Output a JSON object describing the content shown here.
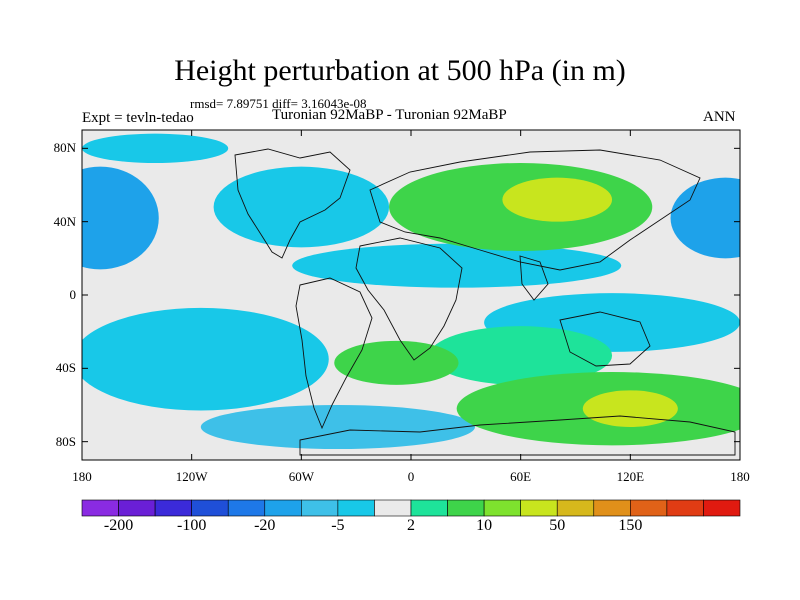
{
  "plot": {
    "title": "Height perturbation at 500 hPa (in m)",
    "stats": "rmsd= 7.89751 diff= 3.16043e-08",
    "expt_label": "Expt = tevln-tedao",
    "experiment": "Turonian  92MaBP - Turonian  92MaBP",
    "season": "ANN"
  },
  "lat_ticks": [
    {
      "label": "80N",
      "value": 80
    },
    {
      "label": "40N",
      "value": 40
    },
    {
      "label": "0",
      "value": 0
    },
    {
      "label": "40S",
      "value": -40
    },
    {
      "label": "80S",
      "value": -80
    }
  ],
  "lon_ticks": [
    {
      "label": "180",
      "value": -180
    },
    {
      "label": "120W",
      "value": -120
    },
    {
      "label": "60W",
      "value": -60
    },
    {
      "label": "0",
      "value": 0
    },
    {
      "label": "60E",
      "value": 60
    },
    {
      "label": "120E",
      "value": 120
    },
    {
      "label": "180",
      "value": 180
    }
  ],
  "colorbar": {
    "colors": [
      "#8a2be2",
      "#6a1fd6",
      "#3b2ad9",
      "#1f4fd8",
      "#1e78e8",
      "#1ea2ea",
      "#3ec0e8",
      "#18c8e8",
      "#eaeaea",
      "#1ee39a",
      "#3ed44a",
      "#7ee22e",
      "#c8e51e",
      "#d6b81c",
      "#e0901a",
      "#e06218",
      "#e03c14",
      "#e01a10"
    ],
    "labels": [
      {
        "label": "-200",
        "boundary": 1
      },
      {
        "label": "-100",
        "boundary": 3
      },
      {
        "label": "-20",
        "boundary": 5
      },
      {
        "label": "-5",
        "boundary": 7
      },
      {
        "label": "2",
        "boundary": 9
      },
      {
        "label": "10",
        "boundary": 11
      },
      {
        "label": "50",
        "boundary": 13
      },
      {
        "label": "150",
        "boundary": 15
      }
    ]
  },
  "fields": [
    {
      "lon": -170,
      "lat": 42,
      "rx": 32,
      "ry": 28,
      "level": 5
    },
    {
      "lon": 172,
      "lat": 42,
      "rx": 30,
      "ry": 22,
      "level": 5
    },
    {
      "lon": -60,
      "lat": 48,
      "rx": 48,
      "ry": 22,
      "level": 7
    },
    {
      "lon": -115,
      "lat": -35,
      "rx": 70,
      "ry": 28,
      "level": 7
    },
    {
      "lon": -40,
      "lat": -72,
      "rx": 75,
      "ry": 12,
      "level": 6
    },
    {
      "lon": 25,
      "lat": 16,
      "rx": 90,
      "ry": 12,
      "level": 7
    },
    {
      "lon": -140,
      "lat": 80,
      "rx": 40,
      "ry": 8,
      "level": 7
    },
    {
      "lon": 110,
      "lat": -15,
      "rx": 70,
      "ry": 16,
      "level": 7
    },
    {
      "lon": 60,
      "lat": 48,
      "rx": 72,
      "ry": 24,
      "level": 10
    },
    {
      "lon": 80,
      "lat": 52,
      "rx": 30,
      "ry": 12,
      "level": 12
    },
    {
      "lon": 60,
      "lat": -33,
      "rx": 50,
      "ry": 16,
      "level": 9
    },
    {
      "lon": 110,
      "lat": -62,
      "rx": 85,
      "ry": 20,
      "level": 10
    },
    {
      "lon": 120,
      "lat": -62,
      "rx": 26,
      "ry": 10,
      "level": 12
    },
    {
      "lon": -8,
      "lat": -37,
      "rx": 34,
      "ry": 12,
      "level": 10
    }
  ]
}
